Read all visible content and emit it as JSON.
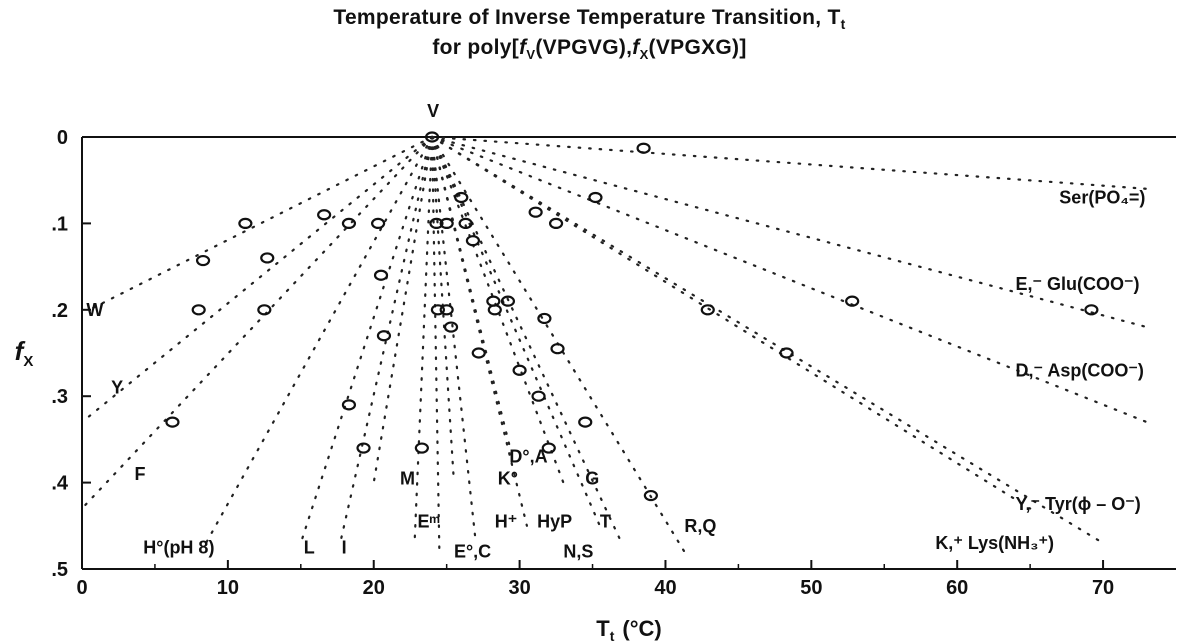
{
  "chart_data": {
    "type": "scatter",
    "title": "Temperature of Inverse Temperature Transition, T",
    "title_subscript": "t",
    "subtitle_prefix": "for poly[",
    "subtitle_f": "f",
    "subtitle_fsub_v": "V",
    "subtitle_mid1": "(VPGVG),",
    "subtitle_fsub_x": "X",
    "subtitle_mid2": "(VPGXG)]",
    "xlabel": "T",
    "xlabel_subscript": "t",
    "xlabel_unit": "(°C)",
    "ylabel": "f",
    "ylabel_subscript": "X",
    "xlim": [
      0,
      75
    ],
    "ylim": [
      0,
      0.5
    ],
    "y_inverted": true,
    "x_ticks": [
      0,
      10,
      20,
      30,
      40,
      50,
      60,
      70
    ],
    "x_tick_labels": [
      "0",
      "10",
      "20",
      "30",
      "40",
      "50",
      "60",
      "70"
    ],
    "y_ticks": [
      0,
      0.1,
      0.2,
      0.3,
      0.4,
      0.5
    ],
    "y_tick_labels": [
      "0",
      ".1",
      ".2",
      ".3",
      ".4",
      ".5"
    ],
    "origin_point": {
      "x": 24,
      "y": 0
    },
    "top_label": "V",
    "series": [
      {
        "label": "W",
        "label_pos": [
          0.3,
          0.2
        ],
        "line": [
          [
            24,
            0
          ],
          [
            0.5,
            0.2
          ]
        ],
        "points": [
          [
            11.2,
            0.1
          ],
          [
            8.3,
            0.143
          ],
          [
            8,
            0.2
          ]
        ]
      },
      {
        "label": "Y",
        "label_pos": [
          2,
          0.29
        ],
        "line": [
          [
            24,
            0
          ],
          [
            0,
            0.33
          ]
        ],
        "points": [
          [
            12.7,
            0.14
          ],
          [
            12.5,
            0.2
          ]
        ]
      },
      {
        "label": "F",
        "label_pos": [
          3.6,
          0.39
        ],
        "line": [
          [
            24,
            0
          ],
          [
            0,
            0.43
          ]
        ],
        "points": [
          [
            16.6,
            0.09
          ],
          [
            6.2,
            0.33
          ]
        ]
      },
      {
        "label": "H°(pH 8)",
        "label_pos": [
          4.2,
          0.475
        ],
        "line": [
          [
            24,
            0
          ],
          [
            8.5,
            0.47
          ]
        ],
        "points": [
          [
            18.3,
            0.1
          ],
          [
            20.5,
            0.16
          ]
        ]
      },
      {
        "label": "L",
        "label_pos": [
          15.2,
          0.475
        ],
        "line": [
          [
            24,
            0
          ],
          [
            15,
            0.47
          ]
        ],
        "points": [
          [
            20.3,
            0.1
          ],
          [
            18.3,
            0.31
          ]
        ]
      },
      {
        "label": "I",
        "label_pos": [
          17.8,
          0.475
        ],
        "line": [
          [
            24,
            0
          ],
          [
            17.7,
            0.47
          ]
        ],
        "points": [
          [
            20.7,
            0.23
          ]
        ]
      },
      {
        "label": "M",
        "label_pos": [
          21.8,
          0.395
        ],
        "line": [
          [
            24,
            0
          ],
          [
            20,
            0.4
          ]
        ],
        "points": [
          [
            19.3,
            0.36
          ]
        ]
      },
      {
        "label": "Eᵐ",
        "label_pos": [
          23,
          0.445
        ],
        "line": [
          [
            24,
            0
          ],
          [
            22.8,
            0.47
          ]
        ],
        "points": [
          [
            23.3,
            0.36
          ]
        ]
      },
      {
        "label": "E°,C",
        "label_pos": [
          25.5,
          0.48
        ],
        "line": [
          [
            24,
            0
          ],
          [
            24.5,
            0.48
          ]
        ],
        "points": [
          [
            24.3,
            0.1
          ],
          [
            24.4,
            0.2
          ]
        ]
      },
      {
        "label": "K°",
        "label_pos": [
          28.5,
          0.395
        ],
        "line": [
          [
            24,
            0
          ],
          [
            25.5,
            0.4
          ]
        ],
        "points": [
          [
            25,
            0.1
          ],
          [
            25,
            0.2
          ]
        ]
      },
      {
        "label": "H⁺",
        "label_pos": [
          28.3,
          0.445
        ],
        "line": [
          [
            24,
            0
          ],
          [
            27,
            0.47
          ]
        ],
        "points": [
          [
            25.3,
            0.22
          ]
        ]
      },
      {
        "label": "D°,A",
        "label_pos": [
          29.3,
          0.37
        ],
        "line": [
          [
            24,
            0
          ],
          [
            29.5,
            0.37
          ]
        ],
        "points": [
          [
            26.3,
            0.1
          ],
          [
            27.2,
            0.25
          ]
        ]
      },
      {
        "label": "HyP",
        "label_pos": [
          31.2,
          0.445
        ],
        "line": [
          [
            24,
            0
          ],
          [
            30.5,
            0.45
          ]
        ],
        "points": [
          [
            28.2,
            0.19
          ],
          [
            28.3,
            0.2
          ]
        ]
      },
      {
        "label": "G",
        "label_pos": [
          34.5,
          0.395
        ],
        "line": [
          [
            24,
            0
          ],
          [
            33,
            0.4
          ]
        ],
        "points": [
          [
            29.2,
            0.19
          ],
          [
            30,
            0.27
          ]
        ]
      },
      {
        "label": "T",
        "label_pos": [
          35.5,
          0.445
        ],
        "line": [
          [
            24,
            0
          ],
          [
            35.5,
            0.45
          ]
        ],
        "points": [
          [
            31.7,
            0.21
          ],
          [
            31.3,
            0.3
          ]
        ]
      },
      {
        "label": "N,S",
        "label_pos": [
          33,
          0.48
        ],
        "line": [
          [
            24,
            0
          ],
          [
            37,
            0.47
          ]
        ],
        "points": [
          [
            32.6,
            0.245
          ],
          [
            34.5,
            0.33
          ]
        ]
      },
      {
        "label": "R,Q",
        "label_pos": [
          41.3,
          0.45
        ],
        "line": [
          [
            24,
            0
          ],
          [
            41.3,
            0.48
          ]
        ],
        "points": [
          [
            32.5,
            0.1
          ],
          [
            39,
            0.415
          ]
        ]
      },
      {
        "label": "Ser(PO₄=)",
        "label_pos": [
          67,
          0.07
        ],
        "line": [
          [
            24,
            0
          ],
          [
            73,
            0.06
          ]
        ],
        "points": [
          [
            38.5,
            0.013
          ]
        ]
      },
      {
        "label": "E,⁻ Glu(COO⁻)",
        "label_pos": [
          64,
          0.17
        ],
        "line": [
          [
            24,
            0
          ],
          [
            73,
            0.22
          ]
        ],
        "points": [
          [
            35.2,
            0.07
          ],
          [
            52.8,
            0.19
          ],
          [
            69.2,
            0.2
          ]
        ]
      },
      {
        "label": "D,⁻ Asp(COO⁻)",
        "label_pos": [
          64,
          0.27
        ],
        "line": [
          [
            24,
            0
          ],
          [
            73,
            0.33
          ]
        ],
        "points": [
          [
            42.9,
            0.2
          ],
          [
            48.3,
            0.25
          ]
        ]
      },
      {
        "label": "Y,⁻ Tyr(ϕ – O⁻)",
        "label_pos": [
          64,
          0.425
        ],
        "line": [
          [
            24,
            0
          ],
          [
            65,
            0.43
          ]
        ],
        "points": [
          [
            31.1,
            0.087
          ],
          [
            32,
            0.36
          ]
        ]
      },
      {
        "label": "K,⁺ Lys(NH₃⁺)",
        "label_pos": [
          58.5,
          0.47
        ],
        "line": [
          [
            24,
            0
          ],
          [
            70,
            0.47
          ]
        ],
        "points": [
          [
            26,
            0.07
          ],
          [
            26.8,
            0.12
          ]
        ]
      }
    ]
  }
}
